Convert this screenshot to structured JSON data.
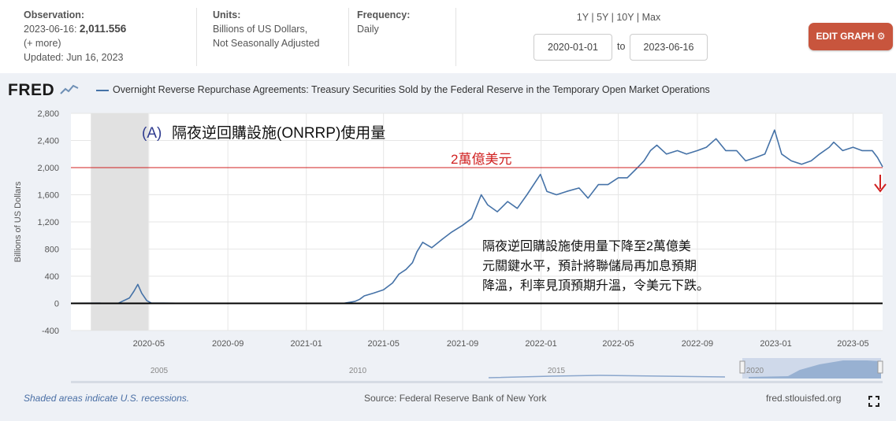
{
  "header": {
    "observation_label": "Observation:",
    "observation_date": "2023-06-16:",
    "observation_value": "2,011.556",
    "more": "(+ more)",
    "updated": "Updated: Jun 16, 2023",
    "units_label": "Units:",
    "units_line1": "Billions of US Dollars,",
    "units_line2": "Not Seasonally Adjusted",
    "frequency_label": "Frequency:",
    "frequency_value": "Daily",
    "range_1y": "1Y",
    "range_5y": "5Y",
    "range_10y": "10Y",
    "range_max": "Max",
    "range_sep": "|",
    "date_from": "2020-01-01",
    "date_to_word": "to",
    "date_to": "2023-06-16",
    "edit_button": "EDIT GRAPH"
  },
  "brand": {
    "logo": "FRED"
  },
  "footer": {
    "recession_note": "Shaded areas indicate U.S. recessions.",
    "source": "Source: Federal Reserve Bank of New York",
    "site": "fred.stlouisfed.org"
  },
  "chart_data": {
    "type": "line",
    "title": "Overnight Reverse Repurchase Agreements: Treasury Securities Sold by the Federal Reserve in the Temporary Open Market Operations",
    "ylabel": "Billions of US Dollars",
    "ylim": [
      -400,
      2800
    ],
    "yticks": [
      -400,
      0,
      400,
      800,
      1200,
      1600,
      2000,
      2400,
      2800
    ],
    "ytick_labels": [
      "-400",
      "0",
      "400",
      "800",
      "1,200",
      "1,600",
      "2,000",
      "2,400",
      "2,800"
    ],
    "xrange": [
      "2020-01-01",
      "2023-06-16"
    ],
    "xticks": [
      "2020-05",
      "2020-09",
      "2021-01",
      "2021-05",
      "2021-09",
      "2022-01",
      "2022-05",
      "2022-09",
      "2023-01",
      "2023-05"
    ],
    "recession": [
      "2020-02-01",
      "2020-04-30"
    ],
    "grid": true,
    "series": [
      {
        "name": "Overnight Reverse Repurchase Agreements",
        "color": "#4572a7",
        "points": [
          [
            "2020-01-01",
            2
          ],
          [
            "2020-03-15",
            3
          ],
          [
            "2020-04-01",
            80
          ],
          [
            "2020-04-08",
            180
          ],
          [
            "2020-04-14",
            280
          ],
          [
            "2020-04-20",
            150
          ],
          [
            "2020-04-28",
            40
          ],
          [
            "2020-05-05",
            5
          ],
          [
            "2020-07-01",
            1
          ],
          [
            "2021-01-01",
            1
          ],
          [
            "2021-03-01",
            2
          ],
          [
            "2021-03-18",
            30
          ],
          [
            "2021-03-25",
            60
          ],
          [
            "2021-04-01",
            110
          ],
          [
            "2021-04-15",
            150
          ],
          [
            "2021-05-01",
            200
          ],
          [
            "2021-05-15",
            300
          ],
          [
            "2021-05-25",
            430
          ],
          [
            "2021-06-05",
            500
          ],
          [
            "2021-06-15",
            600
          ],
          [
            "2021-06-22",
            760
          ],
          [
            "2021-07-01",
            900
          ],
          [
            "2021-07-15",
            820
          ],
          [
            "2021-08-01",
            950
          ],
          [
            "2021-08-15",
            1050
          ],
          [
            "2021-09-01",
            1150
          ],
          [
            "2021-09-15",
            1250
          ],
          [
            "2021-09-30",
            1600
          ],
          [
            "2021-10-10",
            1450
          ],
          [
            "2021-10-25",
            1350
          ],
          [
            "2021-11-10",
            1500
          ],
          [
            "2021-11-25",
            1400
          ],
          [
            "2021-12-10",
            1600
          ],
          [
            "2021-12-31",
            1900
          ],
          [
            "2022-01-10",
            1650
          ],
          [
            "2022-01-25",
            1600
          ],
          [
            "2022-02-10",
            1650
          ],
          [
            "2022-03-01",
            1700
          ],
          [
            "2022-03-15",
            1550
          ],
          [
            "2022-03-31",
            1750
          ],
          [
            "2022-04-15",
            1750
          ],
          [
            "2022-05-01",
            1850
          ],
          [
            "2022-05-15",
            1850
          ],
          [
            "2022-05-31",
            2000
          ],
          [
            "2022-06-10",
            2100
          ],
          [
            "2022-06-20",
            2250
          ],
          [
            "2022-06-30",
            2330
          ],
          [
            "2022-07-15",
            2200
          ],
          [
            "2022-08-01",
            2250
          ],
          [
            "2022-08-15",
            2200
          ],
          [
            "2022-09-01",
            2250
          ],
          [
            "2022-09-15",
            2300
          ],
          [
            "2022-09-30",
            2425
          ],
          [
            "2022-10-15",
            2250
          ],
          [
            "2022-11-01",
            2250
          ],
          [
            "2022-11-15",
            2100
          ],
          [
            "2022-12-01",
            2150
          ],
          [
            "2022-12-15",
            2200
          ],
          [
            "2022-12-30",
            2554
          ],
          [
            "2023-01-10",
            2200
          ],
          [
            "2023-01-25",
            2100
          ],
          [
            "2023-02-10",
            2050
          ],
          [
            "2023-02-25",
            2100
          ],
          [
            "2023-03-10",
            2200
          ],
          [
            "2023-03-25",
            2300
          ],
          [
            "2023-04-01",
            2375
          ],
          [
            "2023-04-15",
            2250
          ],
          [
            "2023-05-01",
            2300
          ],
          [
            "2023-05-15",
            2250
          ],
          [
            "2023-05-31",
            2250
          ],
          [
            "2023-06-08",
            2150
          ],
          [
            "2023-06-16",
            2011.556
          ]
        ]
      }
    ],
    "annotations": {
      "panel_tag": "(A)",
      "panel_title": "隔夜逆回購設施(ONRRP)使用量",
      "threshold_value": 2000,
      "threshold_label": "2萬億美元",
      "threshold_color": "#d02020",
      "zero_line_color": "#000000",
      "note_line1": "隔夜逆回購設施使用量下降至2萬億美",
      "note_line2": "元關鍵水平，預計將聯儲局再加息預期",
      "note_line3": "降溫，利率見頂預期升溫，令美元下跌。"
    },
    "navigator": {
      "labels": [
        "2005",
        "2010",
        "2015",
        "2020"
      ]
    }
  }
}
